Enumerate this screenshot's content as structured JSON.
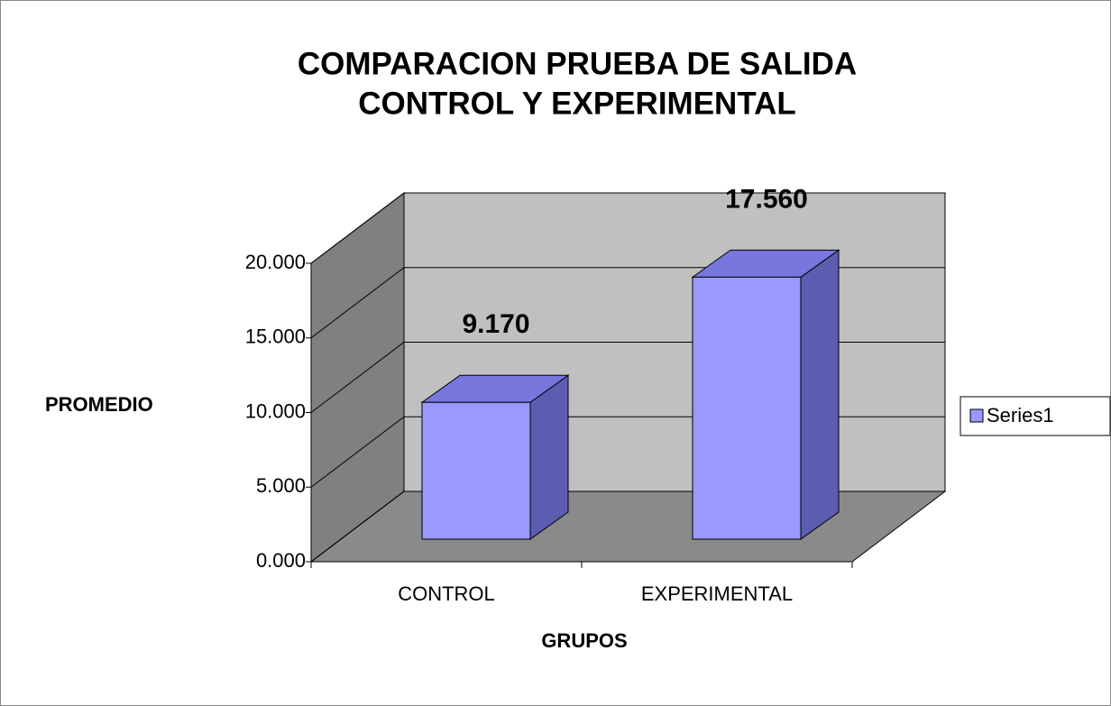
{
  "chart_data": {
    "type": "bar3d",
    "title": [
      "COMPARACION PRUEBA DE SALIDA",
      "CONTROL Y EXPERIMENTAL"
    ],
    "x_label": "GRUPOS",
    "y_label": "PROMEDIO",
    "categories": [
      "CONTROL",
      "EXPERIMENTAL"
    ],
    "series": [
      {
        "name": "Series1",
        "color": "#9999ff",
        "values": [
          9.17,
          17.56
        ],
        "value_labels": [
          "9.170",
          "17.560"
        ]
      }
    ],
    "ylim": [
      0,
      20
    ],
    "yticks": [
      {
        "value": 0,
        "label": "0.000"
      },
      {
        "value": 5,
        "label": "5.000"
      },
      {
        "value": 10,
        "label": "10.000"
      },
      {
        "value": 15,
        "label": "15.000"
      },
      {
        "value": 20,
        "label": "20.000"
      }
    ],
    "grid": true,
    "legend": "right"
  }
}
